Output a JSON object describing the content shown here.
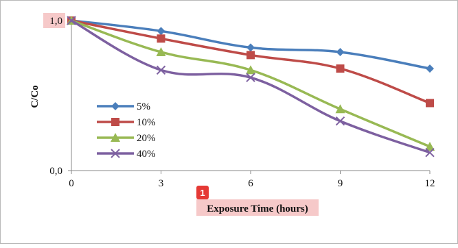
{
  "chart_data": {
    "type": "line",
    "x": [
      0,
      3,
      6,
      9,
      12
    ],
    "series": [
      {
        "name": "5%",
        "values": [
          1.0,
          0.93,
          0.82,
          0.79,
          0.68
        ],
        "color": "#4a7ebb",
        "marker": "diamond"
      },
      {
        "name": "10%",
        "values": [
          1.0,
          0.88,
          0.77,
          0.68,
          0.45
        ],
        "color": "#be4b48",
        "marker": "square"
      },
      {
        "name": "20%",
        "values": [
          1.0,
          0.79,
          0.67,
          0.41,
          0.16
        ],
        "color": "#98b954",
        "marker": "triangle"
      },
      {
        "name": "40%",
        "values": [
          1.0,
          0.67,
          0.62,
          0.33,
          0.12
        ],
        "color": "#7d60a0",
        "marker": "x"
      }
    ],
    "xlabel": "Exposure Time (hours)",
    "ylabel": "C/Co",
    "x_ticks": [
      "0",
      "3",
      "6",
      "9",
      "12"
    ],
    "y_ticks": [
      "0,0",
      "1,0"
    ],
    "xlim": [
      0,
      12
    ],
    "ylim": [
      0,
      1
    ],
    "grid": false,
    "legend_position": "center-left"
  },
  "annotations": {
    "marker_badge": "1"
  }
}
